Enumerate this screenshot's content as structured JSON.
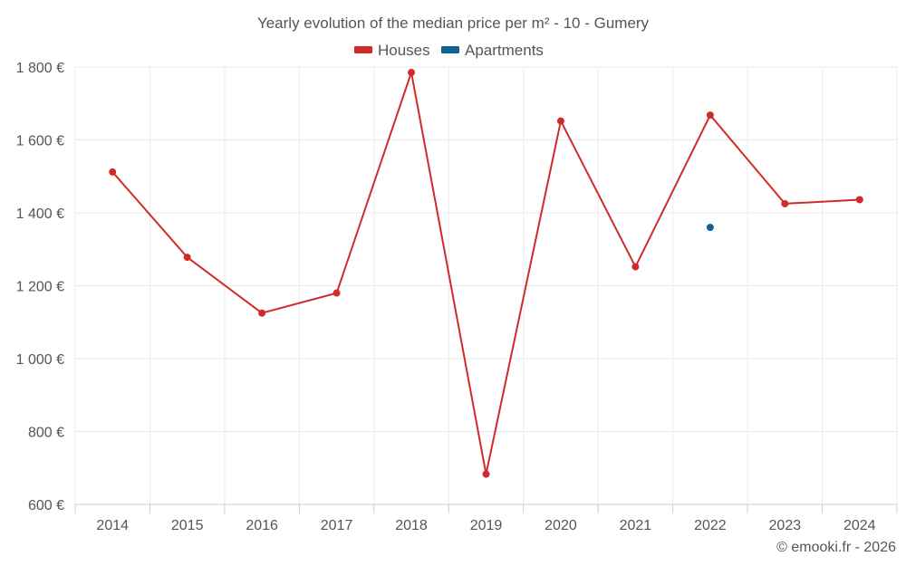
{
  "chart_data": {
    "type": "line",
    "title": "Yearly evolution of the median price per m² - 10 - Gumery",
    "categories": [
      "2014",
      "2015",
      "2016",
      "2017",
      "2018",
      "2019",
      "2020",
      "2021",
      "2022",
      "2023",
      "2024"
    ],
    "y_ticks": [
      {
        "value": 600,
        "label": "600 €"
      },
      {
        "value": 800,
        "label": "800 €"
      },
      {
        "value": 1000,
        "label": "1 000 €"
      },
      {
        "value": 1200,
        "label": "1 200 €"
      },
      {
        "value": 1400,
        "label": "1 400 €"
      },
      {
        "value": 1600,
        "label": "1 600 €"
      },
      {
        "value": 1800,
        "label": "1 800 €"
      }
    ],
    "ylim": [
      600,
      1800
    ],
    "grid": true,
    "legend_position": "top-center",
    "series": [
      {
        "name": "Houses",
        "color": "#d12a2a",
        "values": [
          1512,
          1278,
          1125,
          1180,
          1785,
          683,
          1652,
          1252,
          1668,
          1425,
          1436
        ]
      },
      {
        "name": "Apartments",
        "color": "#0b6399",
        "values": [
          null,
          null,
          null,
          null,
          null,
          null,
          null,
          null,
          1360,
          null,
          null
        ]
      }
    ],
    "credit": "© emooki.fr - 2026"
  }
}
